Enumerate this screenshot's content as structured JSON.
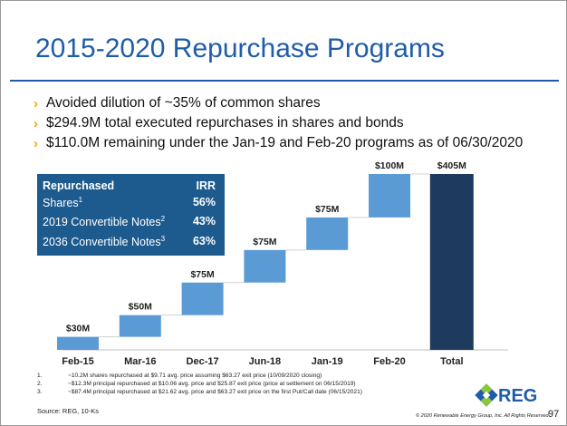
{
  "title": "2015-2020 Repurchase Programs",
  "bullets": [
    "Avoided dilution of ~35% of common shares",
    "$294.9M total executed repurchases in shares and bonds",
    "$110.0M remaining under the Jan-19 and Feb-20 programs as of 06/30/2020"
  ],
  "irr_table": {
    "header_label": "Repurchased",
    "header_value": "IRR",
    "rows": [
      {
        "label": "Shares",
        "sup": "1",
        "value": "56%"
      },
      {
        "label": "2019 Convertible Notes",
        "sup": "2",
        "value": "43%"
      },
      {
        "label": "2036 Convertible Notes",
        "sup": "3",
        "value": "63%"
      }
    ]
  },
  "chart_data": {
    "type": "bar",
    "subtype": "waterfall",
    "categories": [
      "Feb-15",
      "Mar-16",
      "Dec-17",
      "Jun-18",
      "Jan-19",
      "Feb-20",
      "Total"
    ],
    "values": [
      30,
      50,
      75,
      75,
      75,
      100,
      405
    ],
    "labels": [
      "$30M",
      "$50M",
      "$75M",
      "$75M",
      "$75M",
      "$100M",
      "$405M"
    ],
    "total_index": 6,
    "ylim": [
      0,
      405
    ],
    "grid": false,
    "colors": {
      "increment": "#5b9bd5",
      "total": "#1f3a5f",
      "connector": "#d0d0d0"
    }
  },
  "footnotes": [
    {
      "n": "1.",
      "text": "~10.2M shares repurchased at $9.71 avg. price assuming $63.27 exit price (10/09/2020 closing)"
    },
    {
      "n": "2.",
      "text": "~$12.3M principal repurchased at $10.06 avg. price and $25.87 exit price (price at settlement on 06/15/2019)"
    },
    {
      "n": "3.",
      "text": "~$87.4M principal repurchased at $21.62 avg. price and $63.27 exit price on the first Put/Call date (06/15/2021)"
    }
  ],
  "source": "Source: REG, 10-Ks",
  "copyright": "© 2020 Renewable Energy Group, Inc. All Rights Reserved",
  "page_number": "97",
  "logo_text": "REG",
  "logo_icon": "reg-diamond-logo-icon"
}
